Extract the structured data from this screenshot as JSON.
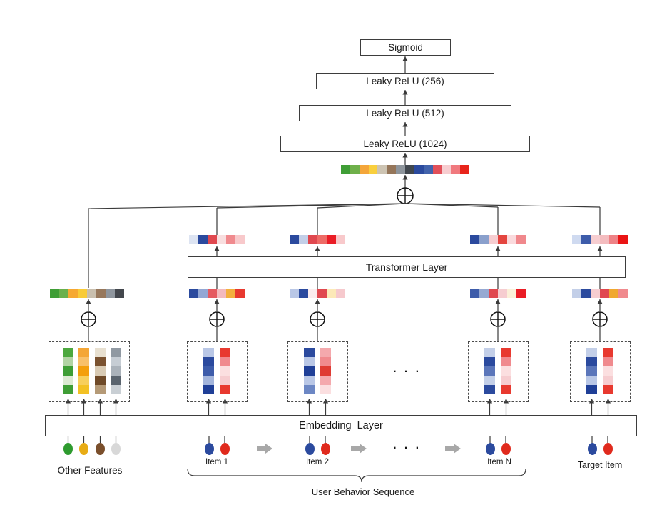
{
  "labels": {
    "sigmoid": "Sigmoid",
    "relu_256": "Leaky ReLU (256)",
    "relu_512": "Leaky ReLU (512)",
    "relu_1024": "Leaky ReLU (1024)",
    "transformer": "Transformer Layer",
    "embedding": "Embedding  Layer",
    "other_features": "Other Features",
    "item_1": "Item 1",
    "item_2": "Item 2",
    "item_n": "Item N",
    "target_item": "Target Item",
    "user_behavior": "User Behavior Sequence",
    "ellipsis": "· · ·"
  },
  "symbols": {
    "concat": "⊕"
  },
  "palette": {
    "concat_vector": [
      "#3f9e36",
      "#6fb04a",
      "#f4a63a",
      "#f9cf3d",
      "#cdc4b3",
      "#95765a",
      "#8e959c",
      "#41474e",
      "#2b4a9e",
      "#4263ac",
      "#e25059",
      "#f7cdd0",
      "#f0797e",
      "#e8251b"
    ],
    "transformer_outputs": {
      "item_1": [
        "#dde4f2",
        "#2b4a9e",
        "#e0484f",
        "#f8dedf",
        "#f08a8e",
        "#f8c9cb"
      ],
      "item_2": [
        "#2b4a9e",
        "#c3cfe8",
        "#e0484f",
        "#ee6b66",
        "#ea1c25",
        "#f8c9cb"
      ],
      "item_n": [
        "#2b4a9e",
        "#8aa0cc",
        "#f6cdd0",
        "#e4453f",
        "#fadadd",
        "#f0888c"
      ],
      "target_item": [
        "#cfdaf0",
        "#3d5caa",
        "#f6cdd0",
        "#f4bcbf",
        "#ee8286",
        "#ea1414"
      ]
    },
    "transformer_inputs": {
      "other_features": [
        "#3f9e36",
        "#6ab04c",
        "#f6a832",
        "#f8cb38",
        "#c9bfae",
        "#97785c",
        "#8f969e",
        "#43474d"
      ],
      "item_1": [
        "#2b4a9e",
        "#93a7d4",
        "#e55a60",
        "#f3babe",
        "#f3b03e",
        "#e8392f"
      ],
      "item_2": [
        "#b9c7e6",
        "#2b4a9e",
        "#fbeced",
        "#e0484f",
        "#fce9b8",
        "#f6c9cd"
      ],
      "item_n": [
        "#3d5caa",
        "#96a9d2",
        "#e0484f",
        "#f6cdd0",
        "#fbf0d8",
        "#ea1c25"
      ],
      "target_item": [
        "#c3cfe8",
        "#2b4a9e",
        "#f6cdd0",
        "#e0484f",
        "#f0a830",
        "#f08a8e"
      ]
    },
    "embedding_bars": {
      "other_features": [
        [
          "#4ca83e",
          "#b2d4a4",
          "#3f9e36",
          "#dcead2",
          "#3f9e36"
        ],
        [
          "#f4a636",
          "#f8c06a",
          "#f49f0c",
          "#f7cf5c",
          "#f3c124"
        ],
        [
          "#e8e0d0",
          "#7a5230",
          "#d9cbb4",
          "#6f4a28",
          "#b59a77"
        ],
        [
          "#9099a2",
          "#c6cdd4",
          "#aab2ba",
          "#5a646e",
          "#c9cfd4"
        ]
      ],
      "item_1": [
        [
          "#b9c7e6",
          "#2b4a9e",
          "#3d5caa",
          "#a3b5dc",
          "#1f3f97"
        ],
        [
          "#e8392f",
          "#f08a8e",
          "#fbdfe0",
          "#f6cdd0",
          "#e8392f"
        ]
      ],
      "item_2": [
        [
          "#2b4a9e",
          "#b9c7e6",
          "#1f3f97",
          "#b9c7e6",
          "#6c87c4"
        ],
        [
          "#f4a9ad",
          "#f08a8e",
          "#df3b33",
          "#f4a9ad",
          "#fbdfe0"
        ]
      ],
      "item_n": [
        [
          "#c3cfe8",
          "#2b4a9e",
          "#5b76ba",
          "#c3cfe8",
          "#2b4a9e"
        ],
        [
          "#e8392f",
          "#f08a8e",
          "#fbdfe0",
          "#f6cdd0",
          "#e8392f"
        ]
      ],
      "target_item": [
        [
          "#c3cfe8",
          "#2b4a9e",
          "#5b76ba",
          "#b9c7e6",
          "#1f3f97"
        ],
        [
          "#e8392f",
          "#f08a8e",
          "#fbdfe0",
          "#f6cdd0",
          "#e8392f"
        ]
      ]
    },
    "input_dots": {
      "other_features": [
        "#2e9b2f",
        "#e8ac15",
        "#7a4f2c",
        "#d8d8d8"
      ],
      "item": [
        "#2b4a9e",
        "#e02a1d"
      ]
    },
    "sequence_arrow": "#a8a8a8",
    "line_color": "#3a3a3a"
  }
}
